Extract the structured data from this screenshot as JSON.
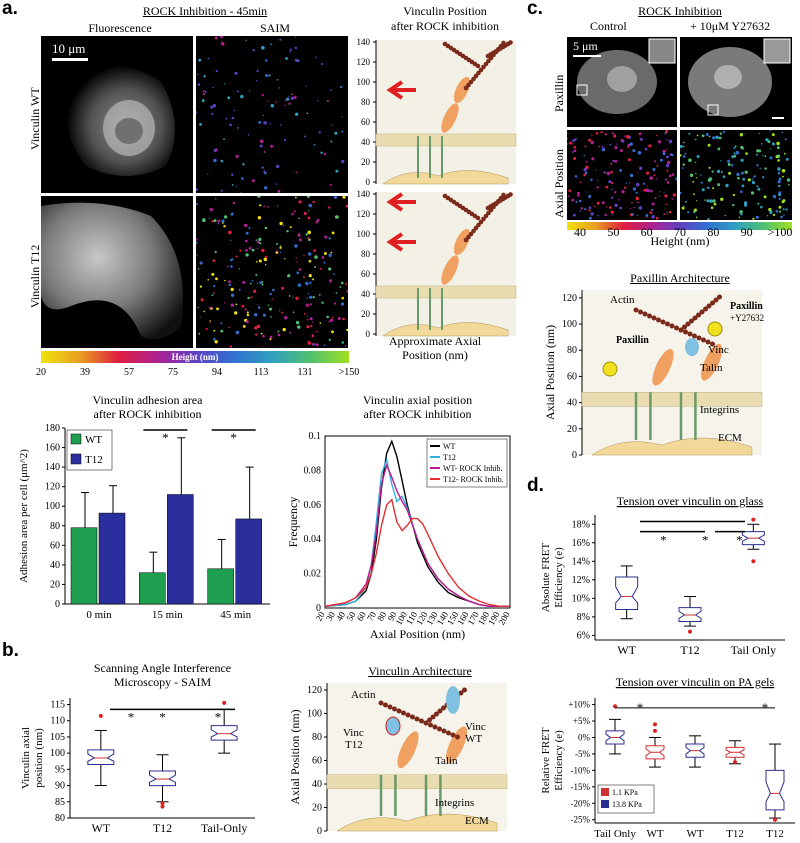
{
  "panel_a": {
    "letter": "a.",
    "header": "ROCK Inhibition - 45min",
    "col_fluorescence": "Fluorescence",
    "col_saim": "SAIM",
    "scale_bar": "10 μm",
    "row_wt": "Vinculin WT",
    "row_t12": "Vinculin T12",
    "colorbar_title": "Height (nm)",
    "colorbar_ticks": [
      "20",
      "39",
      "57",
      "75",
      "94",
      "113",
      "131",
      ">150"
    ],
    "vin_pos_title1": "Vinculin Position",
    "vin_pos_title2": "after ROCK inhibition",
    "axis_caption1": "Approximate Axial",
    "axis_caption2": "Position (nm)",
    "axis_ticks": [
      "0",
      "20",
      "40",
      "60",
      "80",
      "100",
      "120",
      "140"
    ]
  },
  "panel_c": {
    "letter": "c.",
    "header": "ROCK Inhibition",
    "control": "Control",
    "treated": "+ 10μM Y27632",
    "scale_bar": "5 μm",
    "row_paxillin": "Paxillin",
    "row_axial": "Axial Position",
    "colorbar_ticks": [
      "40",
      "50",
      "60",
      "70",
      "80",
      "90",
      ">100"
    ],
    "colorbar_title": "Height (nm)",
    "arch_title": "Paxillin Architecture",
    "arch_ylabel": "Axial Position (nm)",
    "arch_ticks": [
      "0",
      "20",
      "40",
      "60",
      "80",
      "100",
      "120"
    ],
    "labels": {
      "actin": "Actin",
      "paxillin_left": "Paxillin",
      "paxillin_right": "Paxillin",
      "paxillin_right_sub": "+Y27632",
      "vinc": "Vinc",
      "talin": "Talin",
      "integrins": "Integrins",
      "ecm": "ECM"
    }
  },
  "panel_b": {
    "letter": "b.",
    "arch_title": "Vinculin Architecture",
    "arch_ylabel": "Axial Position (nm)",
    "arch_ticks": [
      "0",
      "20",
      "40",
      "60",
      "80",
      "100",
      "120"
    ],
    "labels": {
      "actin": "Actin",
      "vinc_t12": "Vinc",
      "vinc_t12_sub": "T12",
      "vinc_wt": "Vinc",
      "vinc_wt_sub": "WT",
      "talin": "Talin",
      "integrins": "Integrins",
      "ecm": "ECM"
    }
  },
  "panel_d": {
    "letter": "d."
  },
  "chart_data": [
    {
      "type": "bar",
      "title": "Vinculin adhesion area after ROCK inhibition",
      "title_lines": [
        "Vinculin adhesion area",
        "after ROCK inhibition"
      ],
      "ylabel": "Adhesion area per cell (μm^2)",
      "ylim": [
        0,
        180
      ],
      "yticks": [
        "0",
        "20",
        "40",
        "60",
        "80",
        "100",
        "120",
        "140",
        "160",
        "180"
      ],
      "categories": [
        "0 min",
        "15 min",
        "45 min"
      ],
      "series": [
        {
          "name": "WT",
          "color": "#1fa050",
          "values": [
            78,
            32,
            36
          ],
          "errors": [
            36,
            21,
            30
          ]
        },
        {
          "name": "T12",
          "color": "#2b2f9e",
          "values": [
            93,
            112,
            87
          ],
          "errors": [
            28,
            58,
            53
          ]
        }
      ],
      "significance": [
        "",
        "*",
        "*"
      ],
      "legend": "top-left"
    },
    {
      "type": "line",
      "title": "Vinculin axial position after ROCK inhibition",
      "title_lines": [
        "Vinculin axial position",
        "after ROCK inhibition"
      ],
      "xlabel": "Axial Position (nm)",
      "ylabel": "Frequency",
      "xlim": [
        20,
        200
      ],
      "ylim": [
        0,
        0.1
      ],
      "xticks": [
        "20",
        "30",
        "40",
        "50",
        "60",
        "70",
        "80",
        "90",
        "100",
        "110",
        "120",
        "130",
        "140",
        "150",
        "160",
        "170",
        "180",
        "190",
        "200"
      ],
      "yticks": [
        "0",
        "0.02",
        "0.04",
        "0.06",
        "0.08",
        "0.1"
      ],
      "series": [
        {
          "name": "WT",
          "color": "#000000",
          "x": [
            20,
            40,
            50,
            60,
            65,
            70,
            75,
            80,
            85,
            90,
            95,
            100,
            110,
            120,
            130,
            140,
            150,
            160,
            170,
            180,
            190,
            200
          ],
          "y": [
            0.001,
            0.002,
            0.004,
            0.01,
            0.02,
            0.04,
            0.07,
            0.09,
            0.097,
            0.088,
            0.074,
            0.06,
            0.038,
            0.024,
            0.015,
            0.009,
            0.006,
            0.004,
            0.002,
            0.001,
            0.001,
            0.001
          ]
        },
        {
          "name": "T12",
          "color": "#33b0e0",
          "x": [
            20,
            40,
            50,
            60,
            65,
            70,
            75,
            80,
            85,
            90,
            95,
            100,
            110,
            120,
            130,
            140,
            150,
            160,
            170,
            180,
            190,
            200
          ],
          "y": [
            0.001,
            0.002,
            0.004,
            0.012,
            0.025,
            0.05,
            0.078,
            0.086,
            0.072,
            0.062,
            0.065,
            0.058,
            0.04,
            0.026,
            0.017,
            0.011,
            0.007,
            0.004,
            0.002,
            0.001,
            0.001,
            0.001
          ]
        },
        {
          "name": "WT- ROCK Inhib.",
          "color": "#c0188c",
          "x": [
            20,
            40,
            50,
            60,
            65,
            70,
            75,
            80,
            85,
            90,
            95,
            100,
            110,
            120,
            130,
            140,
            150,
            160,
            170,
            180,
            190,
            200
          ],
          "y": [
            0.001,
            0.003,
            0.006,
            0.014,
            0.025,
            0.044,
            0.072,
            0.083,
            0.076,
            0.068,
            0.062,
            0.057,
            0.04,
            0.026,
            0.017,
            0.011,
            0.007,
            0.004,
            0.002,
            0.001,
            0.001,
            0.001
          ]
        },
        {
          "name": "T12- ROCK Inhib.",
          "color": "#e03030",
          "x": [
            20,
            40,
            50,
            60,
            65,
            70,
            75,
            80,
            85,
            90,
            95,
            100,
            105,
            110,
            115,
            120,
            130,
            140,
            150,
            160,
            170,
            180,
            190,
            200
          ],
          "y": [
            0.001,
            0.003,
            0.006,
            0.012,
            0.02,
            0.032,
            0.048,
            0.06,
            0.063,
            0.05,
            0.045,
            0.048,
            0.052,
            0.052,
            0.049,
            0.043,
            0.03,
            0.02,
            0.012,
            0.007,
            0.004,
            0.002,
            0.001,
            0.001
          ]
        }
      ],
      "legend": "top-right"
    },
    {
      "type": "box",
      "title": "Scanning Angle Interference Microscopy - SAIM",
      "title_lines": [
        "Scanning Angle Interference",
        "Microscopy - SAIM"
      ],
      "ylabel": "Vinculin axial position (nm)",
      "ylim": [
        80,
        117
      ],
      "yticks": [
        "80",
        "85",
        "90",
        "95",
        "100",
        "105",
        "110",
        "115"
      ],
      "categories": [
        "WT",
        "T12",
        "Tail-Only"
      ],
      "boxes": [
        {
          "whisker_low": 90,
          "q1": 96.5,
          "median": 98.5,
          "q3": 101,
          "whisker_high": 107,
          "outliers": [
            111.5
          ]
        },
        {
          "whisker_low": 85,
          "q1": 90,
          "median": 92,
          "q3": 94.5,
          "whisker_high": 99.5,
          "outliers": [
            83.5,
            84.5
          ]
        },
        {
          "whisker_low": 100,
          "q1": 104,
          "median": 106,
          "q3": 108.5,
          "whisker_high": 113.5,
          "outliers": [
            115.5
          ]
        }
      ],
      "significance": [
        "*",
        "*",
        "*"
      ]
    },
    {
      "type": "box",
      "title": "Tension over vinculin on glass",
      "ylabel": "Absolute FRET Efficiency (e)",
      "ylim": [
        5.5,
        19
      ],
      "yticks": [
        "6%",
        "8%",
        "10%",
        "12%",
        "14%",
        "16%",
        "18%"
      ],
      "categories": [
        "WT",
        "T12",
        "Tail Only"
      ],
      "boxes": [
        {
          "whisker_low": 7.8,
          "q1": 8.8,
          "median": 10.2,
          "q3": 12.3,
          "whisker_high": 13.5,
          "outliers": []
        },
        {
          "whisker_low": 7.0,
          "q1": 7.5,
          "median": 8.2,
          "q3": 9.0,
          "whisker_high": 10.2,
          "outliers": [
            6.4
          ]
        },
        {
          "whisker_low": 15.3,
          "q1": 15.8,
          "median": 16.5,
          "q3": 17.2,
          "whisker_high": 18.0,
          "outliers": [
            14.0,
            18.5
          ]
        }
      ],
      "significance": [
        "*",
        "*",
        "*"
      ]
    },
    {
      "type": "box",
      "title": "Tension over vinculin on PA gels",
      "ylabel": "Relative FRET Efficiency (e)",
      "ylim": [
        -26,
        12
      ],
      "yticks": [
        "+10%",
        "+5%",
        "0%",
        "-5%",
        "-10%",
        "-15%",
        "-20%",
        "-25%"
      ],
      "categories": [
        "Tail Only",
        "WT",
        "WT",
        "T12",
        "T12"
      ],
      "legend_items": [
        {
          "name": "1.1 KPa",
          "color": "#d03030"
        },
        {
          "name": "13.8 KPa",
          "color": "#2a2f90"
        }
      ],
      "boxes": [
        {
          "color": "#2a2f90",
          "whisker_low": -5,
          "q1": -2,
          "median": 0,
          "q3": 2,
          "whisker_high": 5.5,
          "outliers": [
            9.5
          ]
        },
        {
          "color": "#d03030",
          "whisker_low": -9,
          "q1": -6.5,
          "median": -4.5,
          "q3": -2.5,
          "whisker_high": 0,
          "outliers": [
            2,
            4
          ]
        },
        {
          "color": "#2a2f90",
          "whisker_low": -9,
          "q1": -6,
          "median": -4,
          "q3": -2,
          "whisker_high": 0.5,
          "outliers": []
        },
        {
          "color": "#d03030",
          "whisker_low": -8,
          "q1": -6,
          "median": -4.5,
          "q3": -3,
          "whisker_high": -1,
          "outliers": [
            -7.5
          ]
        },
        {
          "color": "#2a2f90",
          "whisker_low": -24.5,
          "q1": -22,
          "median": -17,
          "q3": -10,
          "whisker_high": -2,
          "outliers": [
            -25
          ]
        }
      ],
      "significance": [
        "*",
        "*"
      ]
    }
  ]
}
